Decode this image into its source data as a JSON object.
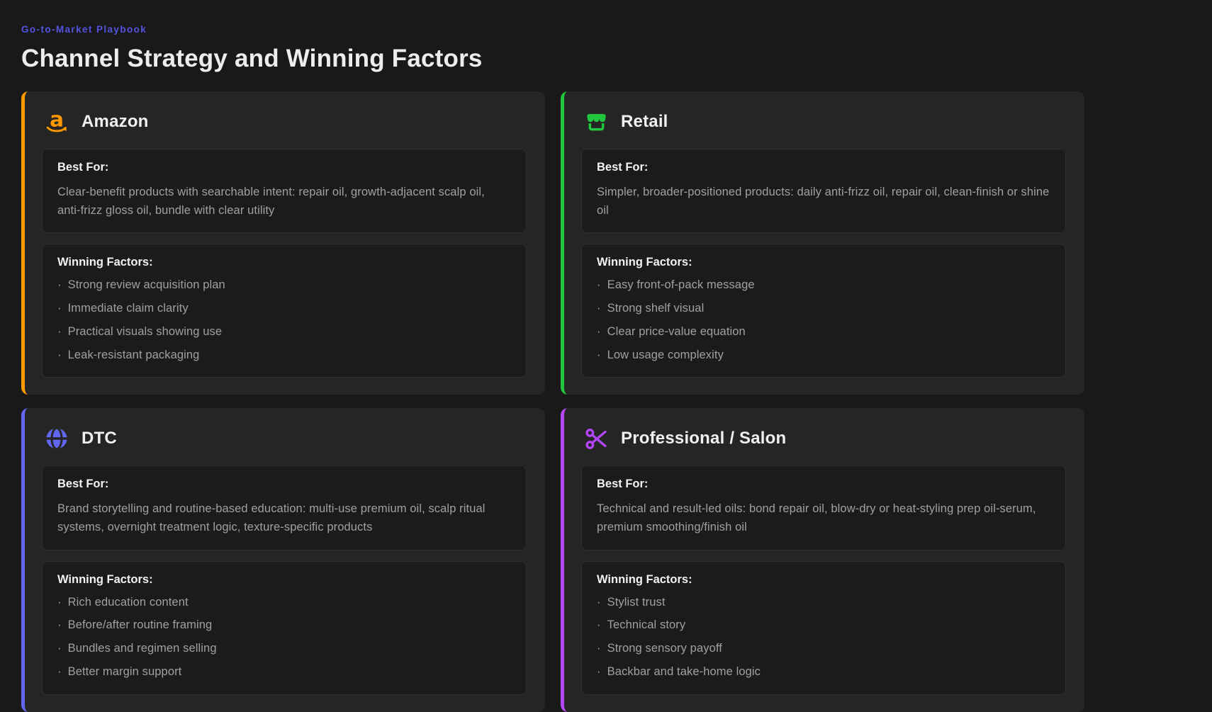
{
  "header": {
    "eyebrow": "Go-to-Market Playbook",
    "title": "Channel Strategy and Winning Factors"
  },
  "bullet": "·",
  "colors": {
    "page_bg": "#191919",
    "card_bg": "#252525",
    "section_bg": "#1b1b1b",
    "amazon_accent": "#ff9900",
    "retail_accent": "#22c53e",
    "dtc_accent": "#6366f1",
    "professional_accent": "#b446f7"
  },
  "cards": [
    {
      "title": "Amazon",
      "icon": "amazon-smile-icon",
      "accent": "#ff9900",
      "best_for_label": "Best For:",
      "best_for": "Clear-benefit products with searchable intent: repair oil, growth-adjacent scalp oil, anti-frizz gloss oil, bundle with clear utility",
      "winning_label": "Winning Factors:",
      "factors": [
        "Strong review acquisition plan",
        "Immediate claim clarity",
        "Practical visuals showing use",
        "Leak-resistant packaging"
      ]
    },
    {
      "title": "Retail",
      "icon": "storefront-icon",
      "accent": "#22c53e",
      "best_for_label": "Best For:",
      "best_for": "Simpler, broader-positioned products: daily anti-frizz oil, repair oil, clean-finish or shine oil",
      "winning_label": "Winning Factors:",
      "factors": [
        "Easy front-of-pack message",
        "Strong shelf visual",
        "Clear price-value equation",
        "Low usage complexity"
      ]
    },
    {
      "title": "DTC",
      "icon": "globe-icon",
      "accent": "#6366f1",
      "best_for_label": "Best For:",
      "best_for": "Brand storytelling and routine-based education: multi-use premium oil, scalp ritual systems, overnight treatment logic, texture-specific products",
      "winning_label": "Winning Factors:",
      "factors": [
        "Rich education content",
        "Before/after routine framing",
        "Bundles and regimen selling",
        "Better margin support"
      ]
    },
    {
      "title": "Professional / Salon",
      "icon": "scissors-icon",
      "accent": "#b446f7",
      "best_for_label": "Best For:",
      "best_for": "Technical and result-led oils: bond repair oil, blow-dry or heat-styling prep oil-serum, premium smoothing/finish oil",
      "winning_label": "Winning Factors:",
      "factors": [
        "Stylist trust",
        "Technical story",
        "Strong sensory payoff",
        "Backbar and take-home logic"
      ]
    }
  ]
}
